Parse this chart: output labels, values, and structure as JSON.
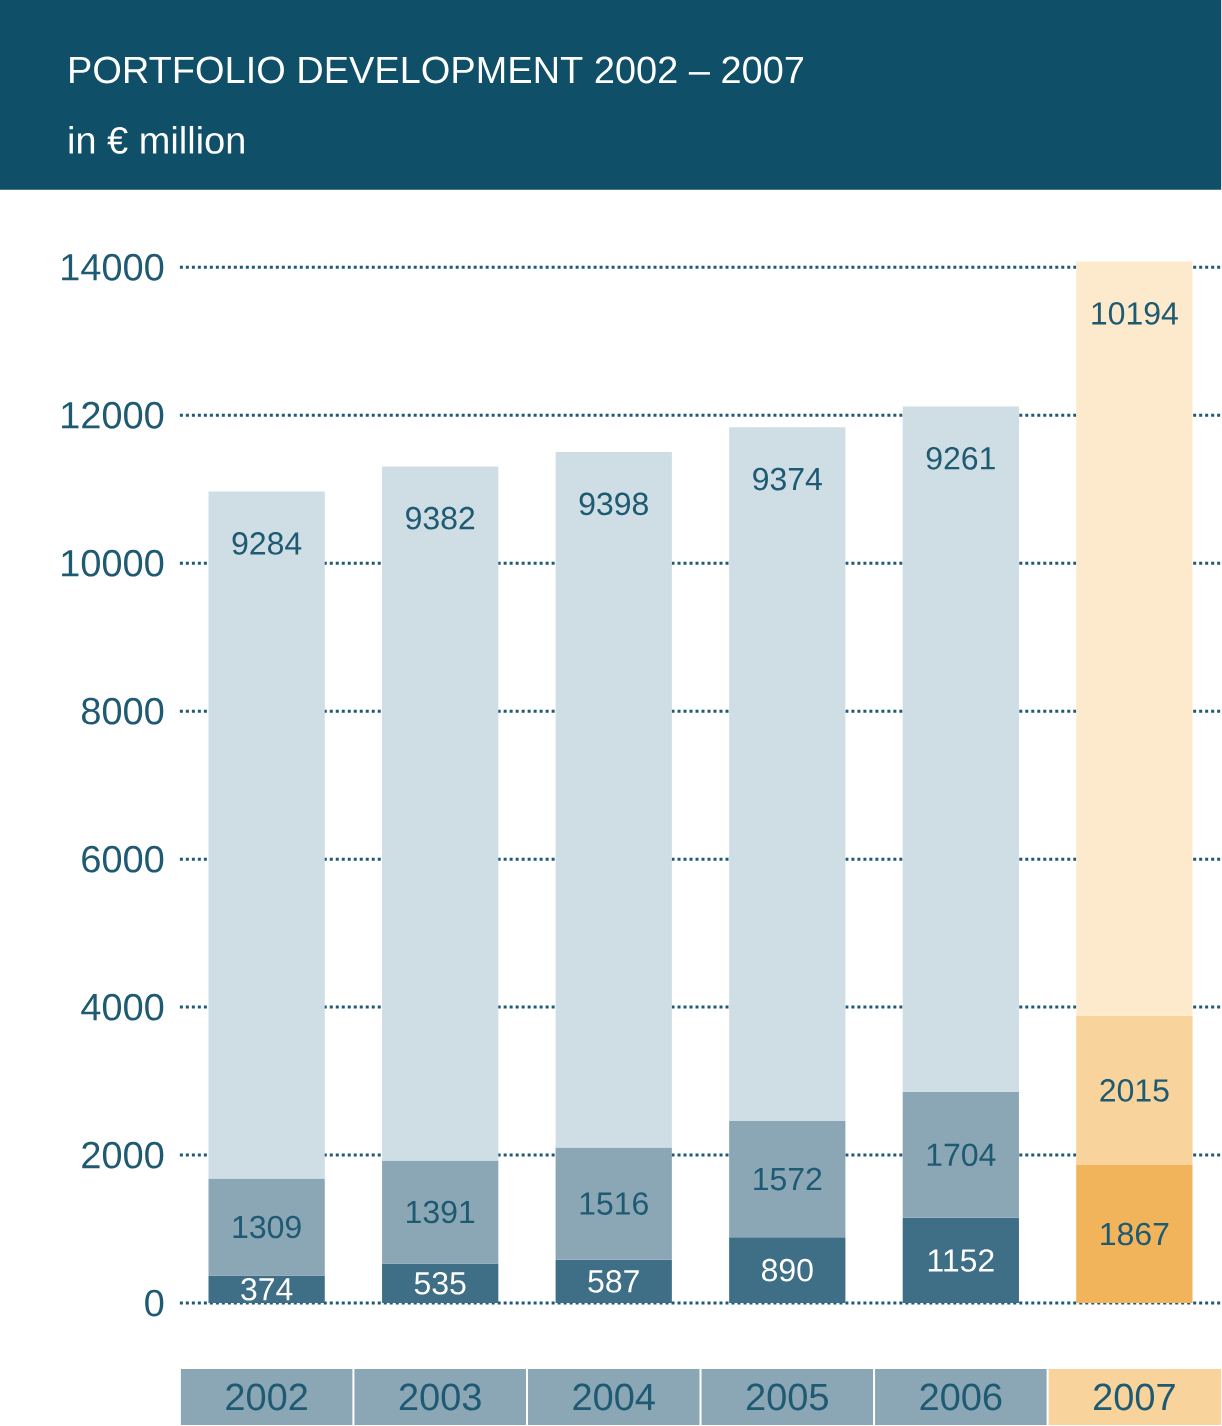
{
  "chart_data": {
    "type": "bar",
    "stacked": true,
    "title": "PORTFOLIO DEVELOPMENT 2002 – 2007",
    "subtitle": "in € million",
    "categories": [
      "2002",
      "2003",
      "2004",
      "2005",
      "2006",
      "2007"
    ],
    "series": [
      {
        "colors": [
          "#3f6f86",
          "#3f6f86",
          "#3f6f86",
          "#3f6f86",
          "#3f6f86",
          "#f2b45a"
        ],
        "values": [
          374,
          535,
          587,
          890,
          1152,
          1867
        ]
      },
      {
        "colors": [
          "#8ba7b6",
          "#8ba7b6",
          "#8ba7b6",
          "#8ba7b6",
          "#8ba7b6",
          "#f8d39b"
        ],
        "values": [
          1309,
          1391,
          1516,
          1572,
          1704,
          2015
        ]
      },
      {
        "colors": [
          "#cfdde4",
          "#cfdde4",
          "#cfdde4",
          "#cfdde4",
          "#cfdde4",
          "#fde9cb"
        ],
        "values": [
          9284,
          9382,
          9398,
          9374,
          9261,
          10194
        ]
      }
    ],
    "ylim": [
      0,
      14100
    ],
    "yticks": [
      0,
      2000,
      4000,
      6000,
      8000,
      10000,
      12000,
      14000
    ],
    "grid": "y",
    "data_labels": true
  }
}
